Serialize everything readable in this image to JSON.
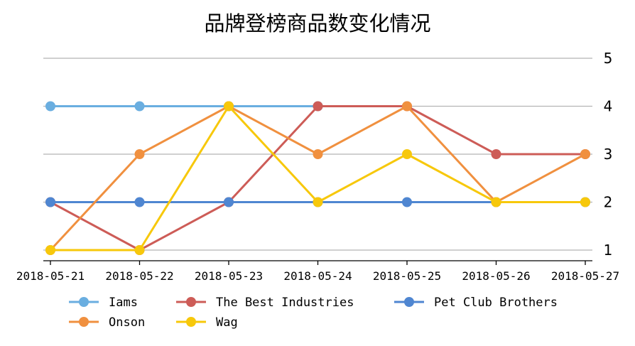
{
  "chart_data": {
    "type": "line",
    "title": "品牌登榜商品数变化情况",
    "x": [
      "2018-05-21",
      "2018-05-22",
      "2018-05-23",
      "2018-05-24",
      "2018-05-25",
      "2018-05-26",
      "2018-05-27"
    ],
    "ylim": [
      1,
      5
    ],
    "yticks": [
      "1",
      "2",
      "3",
      "4",
      "5"
    ],
    "y_axis_side": "right",
    "grid": true,
    "legend_position": "bottom",
    "series": [
      {
        "name": "Iams",
        "color": "#6aaee0",
        "values": [
          4,
          4,
          4,
          4,
          null,
          null,
          null
        ]
      },
      {
        "name": "The Best Industries",
        "color": "#cd5c57",
        "values": [
          2,
          1,
          2,
          4,
          4,
          3,
          3
        ]
      },
      {
        "name": "Pet Club Brothers",
        "color": "#4f86d1",
        "values": [
          2,
          2,
          2,
          2,
          2,
          2,
          2
        ]
      },
      {
        "name": "Onson",
        "color": "#f0903f",
        "values": [
          1,
          3,
          4,
          3,
          4,
          2,
          3
        ]
      },
      {
        "name": "Wag",
        "color": "#f7c80b",
        "values": [
          1,
          1,
          4,
          2,
          3,
          2,
          2
        ]
      }
    ]
  }
}
